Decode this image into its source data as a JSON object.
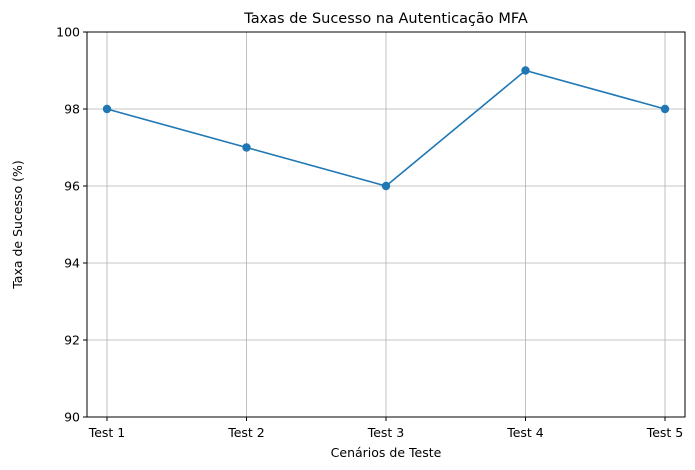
{
  "chart_data": {
    "type": "line",
    "title": "Taxas de Sucesso na Autenticação MFA",
    "xlabel": "Cenários de Teste",
    "ylabel": "Taxa de Sucesso (%)",
    "categories": [
      "Test 1",
      "Test 2",
      "Test 3",
      "Test 4",
      "Test 5"
    ],
    "series": [
      {
        "values": [
          98,
          97,
          96,
          99,
          98
        ],
        "color": "#1f77b4",
        "marker": "circle"
      }
    ],
    "ylim": [
      90,
      100
    ],
    "yticks": [
      90,
      92,
      94,
      96,
      98,
      100
    ],
    "grid": true,
    "legend": false
  }
}
